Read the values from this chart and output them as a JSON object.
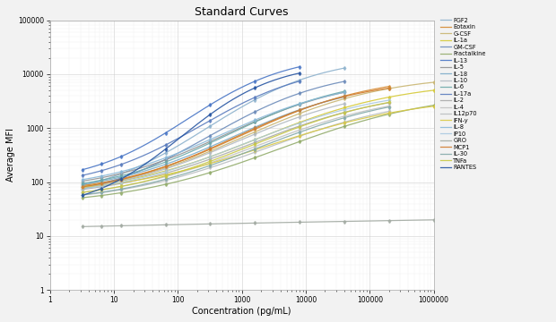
{
  "title": "Standard Curves",
  "xlabel": "Concentration (pg/mL)",
  "ylabel": "Average MFI",
  "xlim": [
    1,
    1000000
  ],
  "ylim": [
    1,
    100000
  ],
  "background_color": "#f2f2f2",
  "plot_bg_color": "#ffffff",
  "legend_entries": [
    "FGF2",
    "Eotaxin",
    "G-CSF",
    "IL-1a",
    "GM-CSF",
    "Fractalkine",
    "IL-13",
    "IL-5",
    "IL-18",
    "IL-10",
    "IL-6",
    "IL-17a",
    "IL-2",
    "IL-4",
    "IL12p70",
    "IFN-y",
    "IL-8",
    "IP10",
    "GRO",
    "MCP1",
    "IL-30",
    "TNFa",
    "RANTES"
  ],
  "curves": [
    {
      "label": "FGF2",
      "color": "#8ab0cc",
      "y_low": 45,
      "y_high": 22000,
      "shift": -0.05,
      "steep": 1.1,
      "x_max": 50000
    },
    {
      "label": "Eotaxin",
      "color": "#d4862a",
      "y_low": 55,
      "y_high": 10000,
      "shift": 0.5,
      "steep": 0.95,
      "x_max": 200000
    },
    {
      "label": "G-CSF",
      "color": "#c8b46e",
      "y_low": 50,
      "y_high": 10000,
      "shift": 0.55,
      "steep": 0.9,
      "x_max": 1000000
    },
    {
      "label": "IL-1a",
      "color": "#d4c832",
      "y_low": 55,
      "y_high": 7500,
      "shift": 0.75,
      "steep": 0.88,
      "x_max": 1000000
    },
    {
      "label": "GM-CSF",
      "color": "#6888b8",
      "y_low": 40,
      "y_high": 13000,
      "shift": 0.0,
      "steep": 1.05,
      "x_max": 40000
    },
    {
      "label": "Fractalkine",
      "color": "#90aa68",
      "y_low": 35,
      "y_high": 5000,
      "shift": 1.1,
      "steep": 0.8,
      "x_max": 1000000
    },
    {
      "label": "IL-13",
      "color": "#4472c4",
      "y_low": 90,
      "y_high": 24000,
      "shift": -0.35,
      "steep": 1.25,
      "x_max": 20000
    },
    {
      "label": "IL-5",
      "color": "#909090",
      "y_low": 65,
      "y_high": 9000,
      "shift": 0.25,
      "steep": 1.0,
      "x_max": 50000
    },
    {
      "label": "IL-18",
      "color": "#78aac8",
      "y_low": 58,
      "y_high": 8000,
      "shift": 0.35,
      "steep": 0.98,
      "x_max": 100000
    },
    {
      "label": "IL-10",
      "color": "#b0b8c0",
      "y_low": 52,
      "y_high": 6500,
      "shift": 0.45,
      "steep": 0.95,
      "x_max": 100000
    },
    {
      "label": "IL-6",
      "color": "#68a8a8",
      "y_low": 60,
      "y_high": 9500,
      "shift": 0.28,
      "steep": 1.02,
      "x_max": 100000
    },
    {
      "label": "IL-17a",
      "color": "#5578bc",
      "y_low": 75,
      "y_high": 16000,
      "shift": -0.15,
      "steep": 1.15,
      "x_max": 30000
    },
    {
      "label": "IL-2",
      "color": "#a8a8a8",
      "y_low": 48,
      "y_high": 5500,
      "shift": 0.65,
      "steep": 0.88,
      "x_max": 200000
    },
    {
      "label": "IL-4",
      "color": "#c0c0c0",
      "y_low": 43,
      "y_high": 5000,
      "shift": 0.72,
      "steep": 0.87,
      "x_max": 200000
    },
    {
      "label": "IL12p70",
      "color": "#b8bcbe",
      "y_low": 38,
      "y_high": 4500,
      "shift": 0.85,
      "steep": 0.83,
      "x_max": 300000
    },
    {
      "label": "IFN-y",
      "color": "#d8c840",
      "y_low": 55,
      "y_high": 4000,
      "shift": 0.9,
      "steep": 0.82,
      "x_max": 1000000
    },
    {
      "label": "IL-8",
      "color": "#88b8d8",
      "y_low": 68,
      "y_high": 8500,
      "shift": 0.18,
      "steep": 1.0,
      "x_max": 80000
    },
    {
      "label": "IP10",
      "color": "#a8c8e0",
      "y_low": 48,
      "y_high": 6000,
      "shift": 0.58,
      "steep": 0.88,
      "x_max": 300000
    },
    {
      "label": "GRO",
      "color": "#a0a8a0",
      "y_low": 20,
      "y_high": 15,
      "shift": 1.5,
      "steep": 0.5,
      "x_max": 1000000
    },
    {
      "label": "MCP1",
      "color": "#d07828",
      "y_low": 52,
      "y_high": 8500,
      "shift": 0.38,
      "steep": 0.98,
      "x_max": 200000
    },
    {
      "label": "IL-30",
      "color": "#80a8a8",
      "y_low": 38,
      "y_high": 5200,
      "shift": 0.78,
      "steep": 0.85,
      "x_max": 300000
    },
    {
      "label": "TNFa",
      "color": "#c8c840",
      "y_low": 42,
      "y_high": 5800,
      "shift": 0.68,
      "steep": 0.88,
      "x_max": 300000
    },
    {
      "label": "RANTES",
      "color": "#2050a0",
      "y_low": 28,
      "y_high": 17000,
      "shift": -0.45,
      "steep": 1.35,
      "x_max": 10000
    }
  ]
}
